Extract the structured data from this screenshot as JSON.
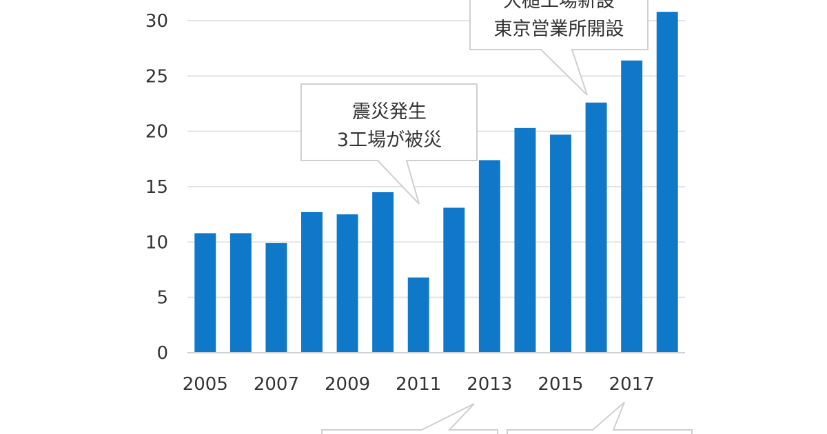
{
  "chart_data": {
    "type": "bar",
    "categories": [
      "2005",
      "2006",
      "2007",
      "2008",
      "2009",
      "2010",
      "2011",
      "2012",
      "2013",
      "2014",
      "2015",
      "2016",
      "2017",
      "2018"
    ],
    "x_tick_labels": [
      "2005",
      "2007",
      "2009",
      "2011",
      "2013",
      "2015",
      "2017"
    ],
    "values": [
      10.8,
      10.8,
      9.9,
      12.7,
      12.5,
      14.5,
      6.8,
      13.1,
      17.4,
      20.3,
      19.7,
      22.6,
      26.4,
      30.8
    ],
    "ylim": [
      0,
      30
    ],
    "y_ticks": [
      0,
      5,
      10,
      15,
      20,
      25,
      30
    ],
    "grid": true,
    "bar_color": "#1078c8",
    "annotations": [
      {
        "lines": [
          "震災発生",
          "3工場が被災"
        ],
        "points_to": "2011"
      },
      {
        "lines": [
          "大槌工場新設",
          "東京営業所開設"
        ],
        "points_to": "2016"
      }
    ]
  }
}
